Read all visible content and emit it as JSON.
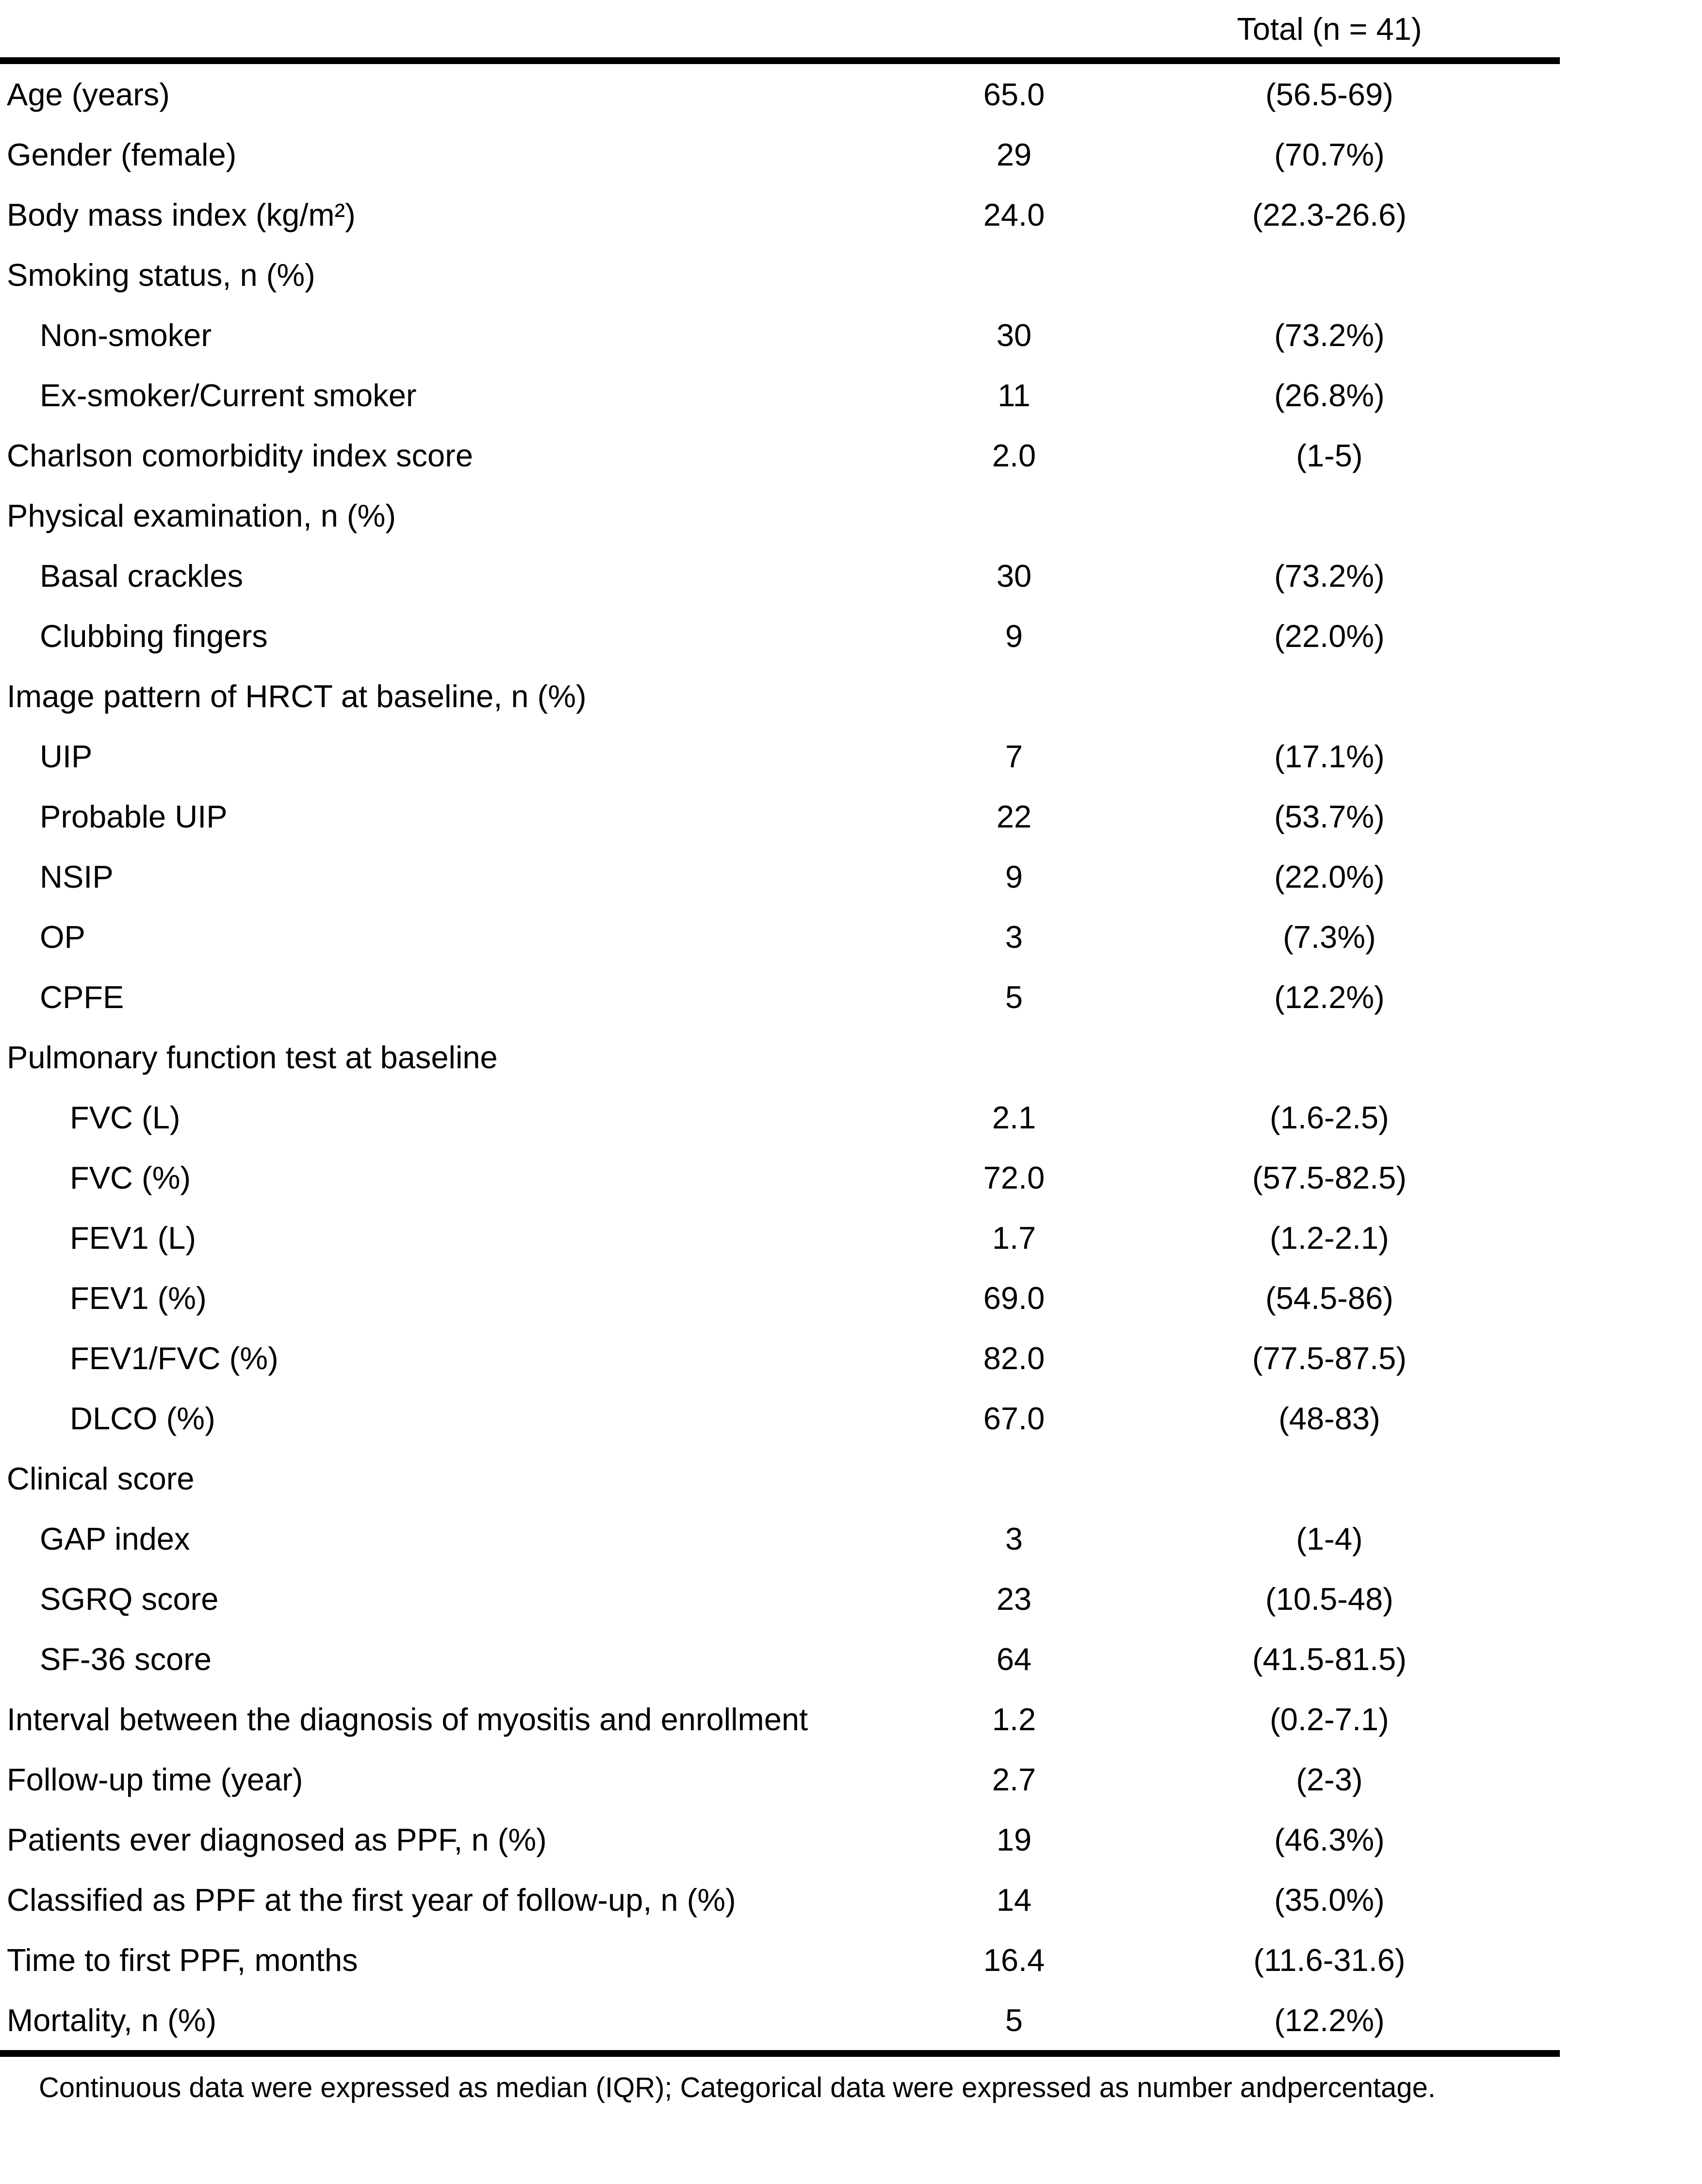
{
  "colors": {
    "text": "#000000",
    "background": "#ffffff",
    "rule": "#000000"
  },
  "table": {
    "header": {
      "total_label": "Total (n = 41)"
    },
    "rows": [
      {
        "label": "Age (years)",
        "indent": 0,
        "value": "65.0",
        "iqr": "(56.5-69)"
      },
      {
        "label": "Gender (female)",
        "indent": 0,
        "value": "29",
        "iqr": "(70.7%)"
      },
      {
        "label": "Body mass index (kg/m²)",
        "indent": 0,
        "value": "24.0",
        "iqr": "(22.3-26.6)"
      },
      {
        "label": "Smoking status, n (%)",
        "indent": 0,
        "value": "",
        "iqr": ""
      },
      {
        "label": "Non-smoker",
        "indent": 1,
        "value": "30",
        "iqr": "(73.2%)"
      },
      {
        "label": "Ex-smoker/Current smoker",
        "indent": 1,
        "value": "11",
        "iqr": "(26.8%)"
      },
      {
        "label": "Charlson comorbidity index score",
        "indent": 0,
        "value": "2.0",
        "iqr": "(1-5)"
      },
      {
        "label": "Physical examination, n (%)",
        "indent": 0,
        "value": "",
        "iqr": ""
      },
      {
        "label": "Basal crackles",
        "indent": 1,
        "value": "30",
        "iqr": "(73.2%)"
      },
      {
        "label": "Clubbing fingers",
        "indent": 1,
        "value": "9",
        "iqr": "(22.0%)"
      },
      {
        "label": "Image pattern of HRCT at baseline, n (%)",
        "indent": 0,
        "value": "",
        "iqr": ""
      },
      {
        "label": "UIP",
        "indent": 1,
        "value": "7",
        "iqr": "(17.1%)"
      },
      {
        "label": "Probable UIP",
        "indent": 1,
        "value": "22",
        "iqr": "(53.7%)"
      },
      {
        "label": "NSIP",
        "indent": 1,
        "value": "9",
        "iqr": "(22.0%)"
      },
      {
        "label": "OP",
        "indent": 1,
        "value": "3",
        "iqr": "(7.3%)"
      },
      {
        "label": "CPFE",
        "indent": 1,
        "value": "5",
        "iqr": "(12.2%)"
      },
      {
        "label": "Pulmonary function test at baseline",
        "indent": 0,
        "value": "",
        "iqr": ""
      },
      {
        "label": "FVC (L)",
        "indent": 2,
        "value": "2.1",
        "iqr": "(1.6-2.5)"
      },
      {
        "label": "FVC (%)",
        "indent": 2,
        "value": "72.0",
        "iqr": "(57.5-82.5)"
      },
      {
        "label": "FEV1 (L)",
        "indent": 2,
        "value": "1.7",
        "iqr": "(1.2-2.1)"
      },
      {
        "label": "FEV1 (%)",
        "indent": 2,
        "value": "69.0",
        "iqr": "(54.5-86)"
      },
      {
        "label": "FEV1/FVC (%)",
        "indent": 2,
        "value": "82.0",
        "iqr": "(77.5-87.5)"
      },
      {
        "label": "DLCO (%)",
        "indent": 2,
        "value": "67.0",
        "iqr": "(48-83)"
      },
      {
        "label": "Clinical score",
        "indent": 0,
        "value": "",
        "iqr": ""
      },
      {
        "label": "GAP index",
        "indent": 1,
        "value": "3",
        "iqr": "(1-4)"
      },
      {
        "label": "SGRQ score",
        "indent": 1,
        "value": "23",
        "iqr": "(10.5-48)"
      },
      {
        "label": "SF-36 score",
        "indent": 1,
        "value": "64",
        "iqr": "(41.5-81.5)"
      },
      {
        "label": "Interval between the diagnosis of myositis and enrollment",
        "indent": 0,
        "value": "1.2",
        "iqr": "(0.2-7.1)"
      },
      {
        "label": "Follow-up time (year)",
        "indent": 0,
        "value": "2.7",
        "iqr": "(2-3)"
      },
      {
        "label": "Patients ever diagnosed as PPF, n (%)",
        "indent": 0,
        "value": "19",
        "iqr": "(46.3%)"
      },
      {
        "label": "Classified as PPF at the first year of follow-up, n (%)",
        "indent": 0,
        "value": "14",
        "iqr": "(35.0%)"
      },
      {
        "label": "Time to first PPF, months",
        "indent": 0,
        "value": "16.4",
        "iqr": "(11.6-31.6)"
      },
      {
        "label": "Mortality, n (%)",
        "indent": 0,
        "value": "5",
        "iqr": "(12.2%)"
      }
    ],
    "footnote": "Continuous data were expressed as median (IQR); Categorical data were expressed as number andpercentage."
  }
}
